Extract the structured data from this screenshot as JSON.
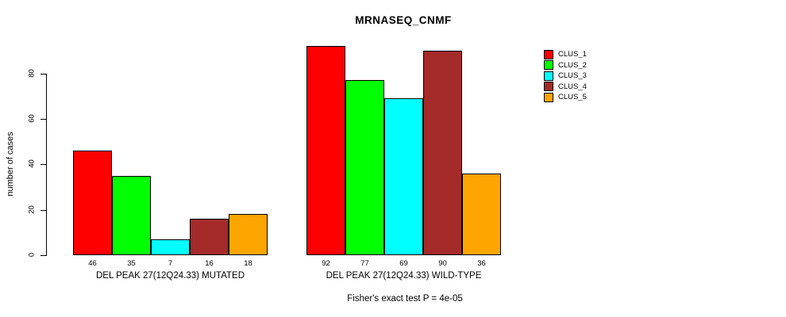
{
  "chart_data": {
    "type": "bar",
    "title": "MRNASEQ_CNMF",
    "xlabel": "",
    "ylabel": "number of cases",
    "categories": [
      "DEL PEAK 27(12Q24.33) MUTATED",
      "DEL PEAK 27(12Q24.33) WILD-TYPE"
    ],
    "series": [
      {
        "name": "CLUS_1",
        "color": "#FF0000",
        "values": [
          46,
          92
        ]
      },
      {
        "name": "CLUS_2",
        "color": "#00FF00",
        "values": [
          35,
          77
        ]
      },
      {
        "name": "CLUS_3",
        "color": "#00FFFF",
        "values": [
          7,
          69
        ]
      },
      {
        "name": "CLUS_4",
        "color": "#A52A2A",
        "values": [
          16,
          90
        ]
      },
      {
        "name": "CLUS_5",
        "color": "#FFA500",
        "values": [
          18,
          36
        ]
      }
    ],
    "bar_value_labels": [
      [
        46,
        35,
        7,
        16,
        18
      ],
      [
        92,
        77,
        69,
        90,
        36
      ]
    ],
    "yticks": [
      0,
      20,
      40,
      60,
      80
    ],
    "ylim": [
      0,
      92
    ],
    "grid": false,
    "legend_position": "right",
    "legend_entries": [
      "CLUS_1",
      "CLUS_2",
      "CLUS_3",
      "CLUS_4",
      "CLUS_5"
    ],
    "annotation": "Fisher's exact test P = 4e-05"
  }
}
